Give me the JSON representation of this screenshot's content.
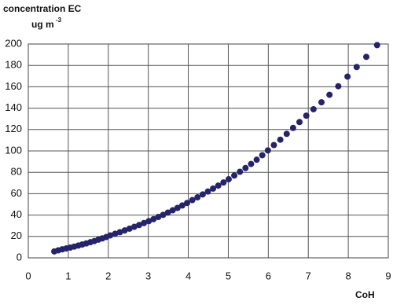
{
  "chart_data": {
    "type": "scatter",
    "y_label": "concentration EC",
    "y_unit": "ug m",
    "y_unit_exp": "-3",
    "x_label": "CoH",
    "x": [
      0.65,
      0.75,
      0.85,
      0.95,
      1.05,
      1.15,
      1.25,
      1.35,
      1.45,
      1.55,
      1.65,
      1.75,
      1.85,
      1.95,
      2.05,
      2.17,
      2.29,
      2.41,
      2.53,
      2.65,
      2.77,
      2.89,
      3.01,
      3.13,
      3.25,
      3.37,
      3.49,
      3.61,
      3.73,
      3.85,
      3.97,
      4.1,
      4.23,
      4.36,
      4.49,
      4.62,
      4.75,
      4.88,
      5.01,
      5.15,
      5.29,
      5.43,
      5.57,
      5.71,
      5.85,
      5.99,
      6.14,
      6.3,
      6.46,
      6.62,
      6.78,
      6.95,
      7.13,
      7.33,
      7.53,
      7.75,
      7.98,
      8.21,
      8.45,
      8.72
    ],
    "values": [
      6,
      7,
      8,
      8.8,
      9.6,
      10.5,
      11.5,
      12.5,
      13.5,
      14.6,
      15.7,
      17,
      18.2,
      19.5,
      21,
      22.5,
      24,
      25.6,
      27.3,
      29,
      30.7,
      32.5,
      34.3,
      36.2,
      38.2,
      40.2,
      42.3,
      44.5,
      46.7,
      49,
      51.3,
      54,
      56.6,
      59.3,
      62,
      64.8,
      67.6,
      70.5,
      73.5,
      77,
      80.5,
      84,
      87.8,
      91.8,
      96,
      100.5,
      105.5,
      110.5,
      116,
      121.5,
      127,
      133,
      139,
      145.5,
      152.5,
      160.5,
      169.5,
      178.5,
      188,
      199
    ],
    "color": "#25246b",
    "xlim": [
      0,
      9
    ],
    "xticks": [
      0,
      1,
      2,
      3,
      4,
      5,
      6,
      7,
      8,
      9
    ],
    "ylim": [
      0,
      200
    ],
    "yticks": [
      0,
      20,
      40,
      60,
      80,
      100,
      120,
      140,
      160,
      180,
      200
    ],
    "grid": true
  }
}
